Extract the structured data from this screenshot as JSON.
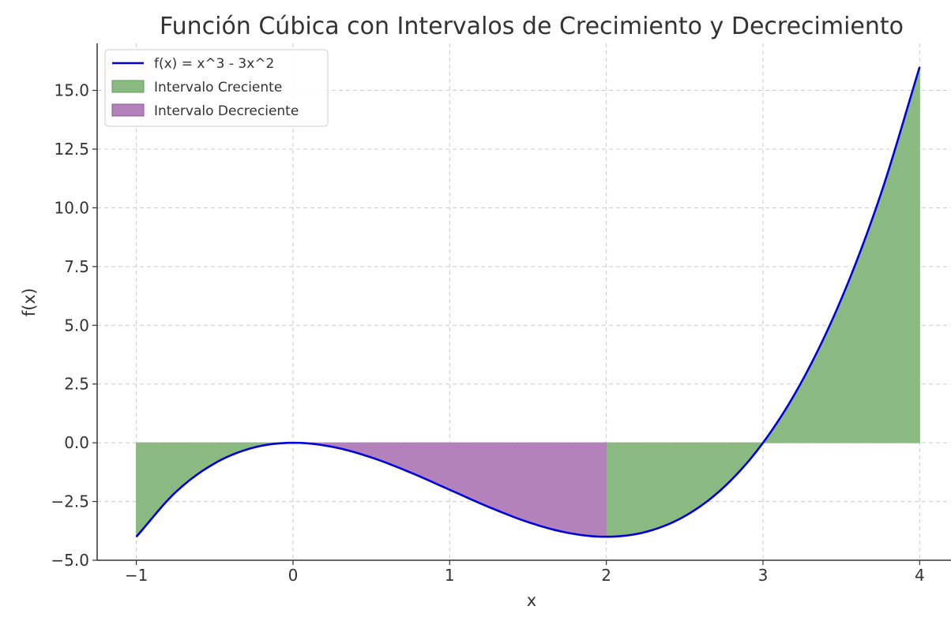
{
  "chart_data": {
    "type": "area",
    "title": "Función Cúbica con Intervalos de Crecimiento y Decrecimiento",
    "xlabel": "x",
    "ylabel": "f(x)",
    "xlim": [
      -1.25,
      4.2
    ],
    "ylim": [
      -5.0,
      17.0
    ],
    "x_ticks": [
      -1,
      0,
      1,
      2,
      3,
      4
    ],
    "x_tick_labels": [
      "−1",
      "0",
      "1",
      "2",
      "3",
      "4"
    ],
    "y_ticks": [
      -5.0,
      -2.5,
      0.0,
      2.5,
      5.0,
      7.5,
      10.0,
      12.5,
      15.0
    ],
    "y_tick_labels": [
      "−5.0",
      "−2.5",
      "0.0",
      "2.5",
      "5.0",
      "7.5",
      "10.0",
      "12.5",
      "15.0"
    ],
    "grid": true,
    "legend_position": "top-left",
    "series": [
      {
        "name": "f(x) = x^3 - 3x^2",
        "kind": "line",
        "color": "#0000dd",
        "x": [
          -1.0,
          -0.75,
          -0.5,
          -0.25,
          0.0,
          0.25,
          0.5,
          0.75,
          1.0,
          1.25,
          1.5,
          1.75,
          2.0,
          2.25,
          2.5,
          2.75,
          3.0,
          3.25,
          3.5,
          3.75,
          4.0
        ],
        "y": [
          -4.0,
          -2.11,
          -0.875,
          -0.203,
          0.0,
          -0.172,
          -0.625,
          -1.266,
          -2.0,
          -2.734,
          -3.375,
          -3.828,
          -4.0,
          -3.797,
          -3.125,
          -1.891,
          0.0,
          2.641,
          6.125,
          10.547,
          16.0
        ]
      },
      {
        "name": "Intervalo Creciente",
        "kind": "fill",
        "color": "#8aba82",
        "intervals": [
          [
            -1,
            0
          ],
          [
            2,
            4
          ]
        ]
      },
      {
        "name": "Intervalo Decreciente",
        "kind": "fill",
        "color": "#b482bb",
        "intervals": [
          [
            0,
            2
          ]
        ]
      }
    ]
  }
}
